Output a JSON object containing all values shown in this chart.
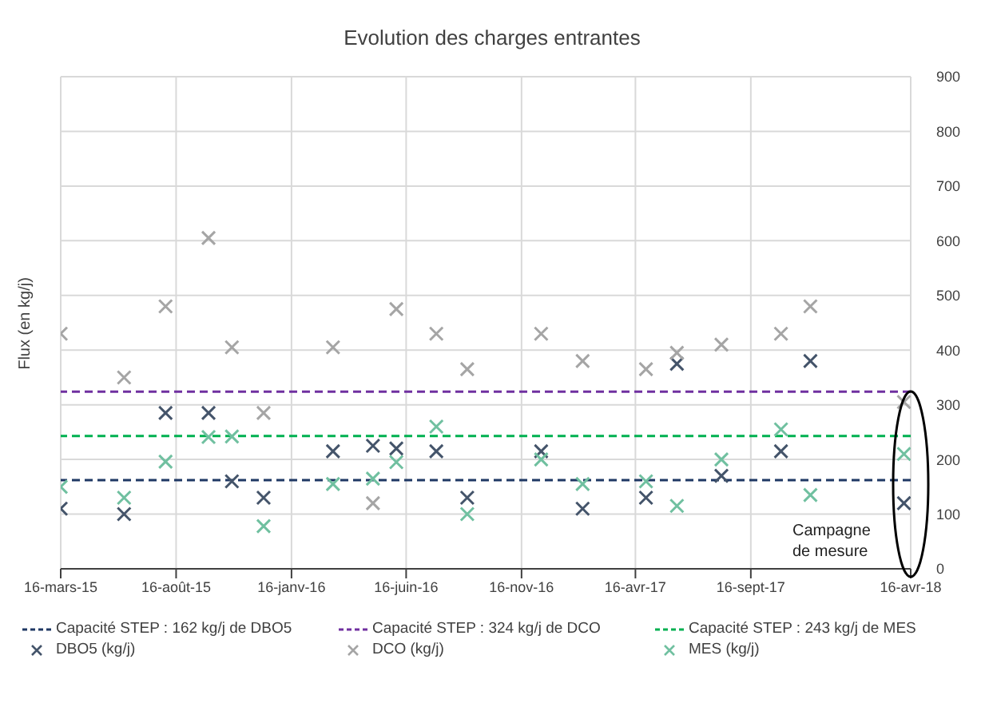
{
  "chart_data": {
    "type": "scatter",
    "title": "Evolution des charges entrantes",
    "ylabel": "Flux (en kg/j)",
    "xlim": [
      "2015-03-16",
      "2018-04-16"
    ],
    "xticks": [
      {
        "value": "2015-03-16",
        "label": "16-mars-15"
      },
      {
        "value": "2015-08-16",
        "label": "16-août-15"
      },
      {
        "value": "2016-01-16",
        "label": "16-janv-16"
      },
      {
        "value": "2016-06-16",
        "label": "16-juin-16"
      },
      {
        "value": "2016-11-16",
        "label": "16-nov-16"
      },
      {
        "value": "2017-04-16",
        "label": "16-avr-17"
      },
      {
        "value": "2017-09-16",
        "label": "16-sept-17"
      },
      {
        "value": "2018-04-16",
        "label": "16-avr-18"
      }
    ],
    "ylim": [
      0,
      900
    ],
    "yticks": [
      0,
      100,
      200,
      300,
      400,
      500,
      600,
      700,
      800,
      900
    ],
    "grid": true,
    "legend": "bottom",
    "marker": "cross",
    "x": [
      "2015-03-16",
      "2015-06-08",
      "2015-08-02",
      "2015-09-28",
      "2015-10-29",
      "2015-12-10",
      "2016-03-11",
      "2016-05-03",
      "2016-06-03",
      "2016-07-26",
      "2016-09-05",
      "2016-12-12",
      "2017-02-05",
      "2017-04-30",
      "2017-06-10",
      "2017-08-08",
      "2017-10-26",
      "2017-12-04",
      "2018-04-07"
    ],
    "series": [
      {
        "name": "DBO5 (kg/j)",
        "color": "#44546a",
        "values": [
          110,
          100,
          285,
          285,
          160,
          130,
          215,
          225,
          220,
          215,
          130,
          215,
          110,
          130,
          375,
          170,
          215,
          380,
          120
        ]
      },
      {
        "name": "DCO (kg/j)",
        "color": "#a5a5a5",
        "values": [
          430,
          350,
          480,
          605,
          405,
          285,
          405,
          120,
          475,
          430,
          365,
          430,
          380,
          365,
          395,
          410,
          430,
          480,
          305
        ]
      },
      {
        "name": "MES (kg/j)",
        "color": "#70c0a0",
        "values": [
          150,
          130,
          196,
          241,
          242,
          78,
          155,
          165,
          195,
          260,
          100,
          200,
          155,
          160,
          115,
          200,
          255,
          135,
          210
        ]
      }
    ],
    "ref_lines": [
      {
        "axis": "y",
        "value": 162,
        "label": "Capacité STEP : 162 kg/j de DBO5",
        "color": "#1f3864",
        "line_style": "dashed"
      },
      {
        "axis": "y",
        "value": 324,
        "label": "Capacité STEP : 324 kg/j de DCO",
        "color": "#7030a0",
        "line_style": "dashed"
      },
      {
        "axis": "y",
        "value": 243,
        "label": "Capacité STEP : 243 kg/j de MES",
        "color": "#00b050",
        "line_style": "dashed"
      }
    ],
    "annotations": [
      "Campagne de mesure"
    ]
  }
}
